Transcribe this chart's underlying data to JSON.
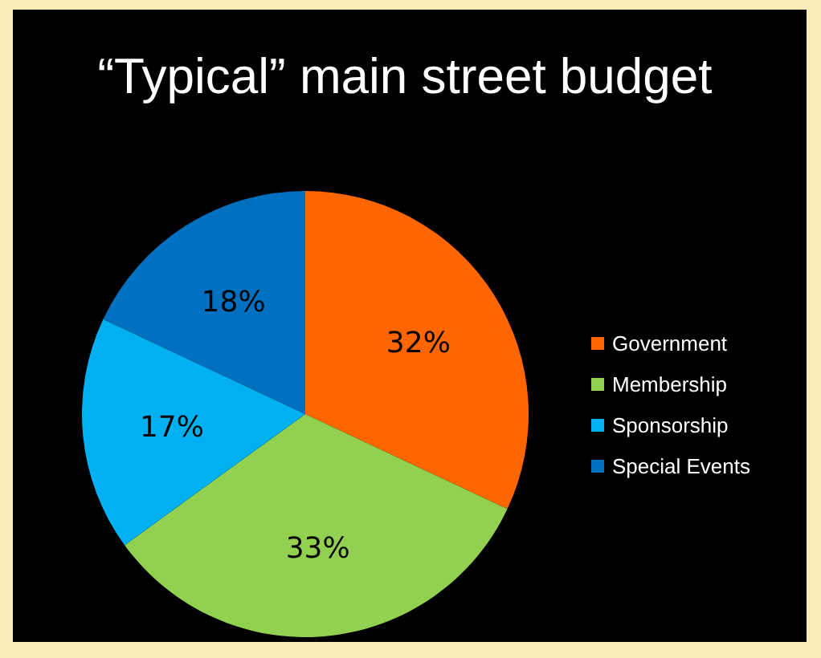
{
  "chart_data": {
    "type": "pie",
    "title": "“Typical” main street budget",
    "categories": [
      "Government",
      "Membership",
      "Sponsorship",
      "Special Events"
    ],
    "values": [
      32,
      33,
      17,
      18
    ],
    "colors": [
      "#ff6600",
      "#92d050",
      "#00b0f0",
      "#0070c0"
    ],
    "value_labels": [
      "32%",
      "33%",
      "17%",
      "18%"
    ],
    "legend": "right"
  }
}
